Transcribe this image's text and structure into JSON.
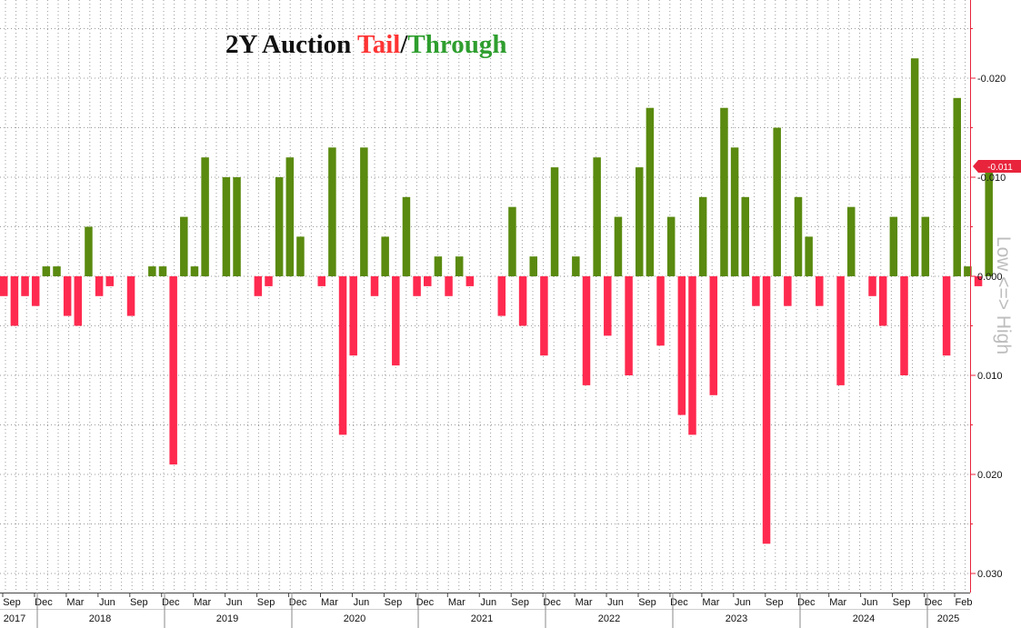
{
  "chart_data": {
    "type": "bar",
    "title": {
      "prefix": "2Y Auction ",
      "tail": "Tail",
      "sep": "/",
      "through": "Through"
    },
    "ylabel": "Low <=> High",
    "ylim": [
      0.031,
      -0.027
    ],
    "y_ticks": [
      "-0.020",
      "-0.010",
      "0.000",
      "0.010",
      "0.020",
      "0.030"
    ],
    "last_value_label": "-0.011",
    "colors": {
      "tail": "#ff2a4f",
      "through": "#5a8a0f",
      "title_tail": "#ff3333",
      "title_through": "#2e9e2e",
      "axis": "#e8243c"
    },
    "x_month_labels": [
      "Sep",
      "Dec",
      "Mar",
      "Jun",
      "Sep",
      "Dec",
      "Mar",
      "Jun",
      "Sep",
      "Dec",
      "Mar",
      "Jun",
      "Sep",
      "Dec",
      "Mar",
      "Jun",
      "Sep",
      "Dec",
      "Mar",
      "Jun",
      "Sep",
      "Dec",
      "Mar",
      "Jun",
      "Sep",
      "Dec",
      "Mar",
      "Jun",
      "Sep",
      "Dec",
      "Feb"
    ],
    "x_year_labels": [
      "2017",
      "2018",
      "2019",
      "2020",
      "2021",
      "2022",
      "2023",
      "2024",
      "2025"
    ],
    "values": [
      0.002,
      0.005,
      0.002,
      0.003,
      -0.001,
      -0.001,
      0.004,
      0.005,
      -0.005,
      0.002,
      0.001,
      0.0,
      0.004,
      0.0,
      -0.001,
      -0.001,
      0.019,
      -0.006,
      -0.001,
      -0.012,
      0.0,
      -0.01,
      -0.01,
      0.0,
      0.002,
      0.001,
      -0.01,
      -0.012,
      -0.004,
      0.0,
      0.001,
      -0.013,
      0.016,
      0.008,
      -0.013,
      0.002,
      -0.004,
      0.009,
      -0.008,
      0.002,
      0.001,
      -0.002,
      0.002,
      -0.002,
      0.001,
      0.0,
      0.0,
      0.004,
      -0.007,
      0.005,
      -0.002,
      0.008,
      -0.011,
      0.0,
      -0.002,
      0.011,
      -0.012,
      0.006,
      -0.006,
      0.01,
      -0.011,
      -0.017,
      0.007,
      -0.006,
      0.014,
      0.016,
      -0.008,
      0.012,
      -0.017,
      -0.013,
      -0.008,
      0.003,
      0.027,
      -0.015,
      0.003,
      -0.008,
      -0.004,
      0.003,
      0.0,
      0.011,
      -0.007,
      0.0,
      0.002,
      0.005,
      -0.006,
      0.01,
      -0.022,
      -0.006,
      0.0,
      0.008,
      -0.018,
      -0.001,
      0.001,
      -0.011
    ]
  }
}
